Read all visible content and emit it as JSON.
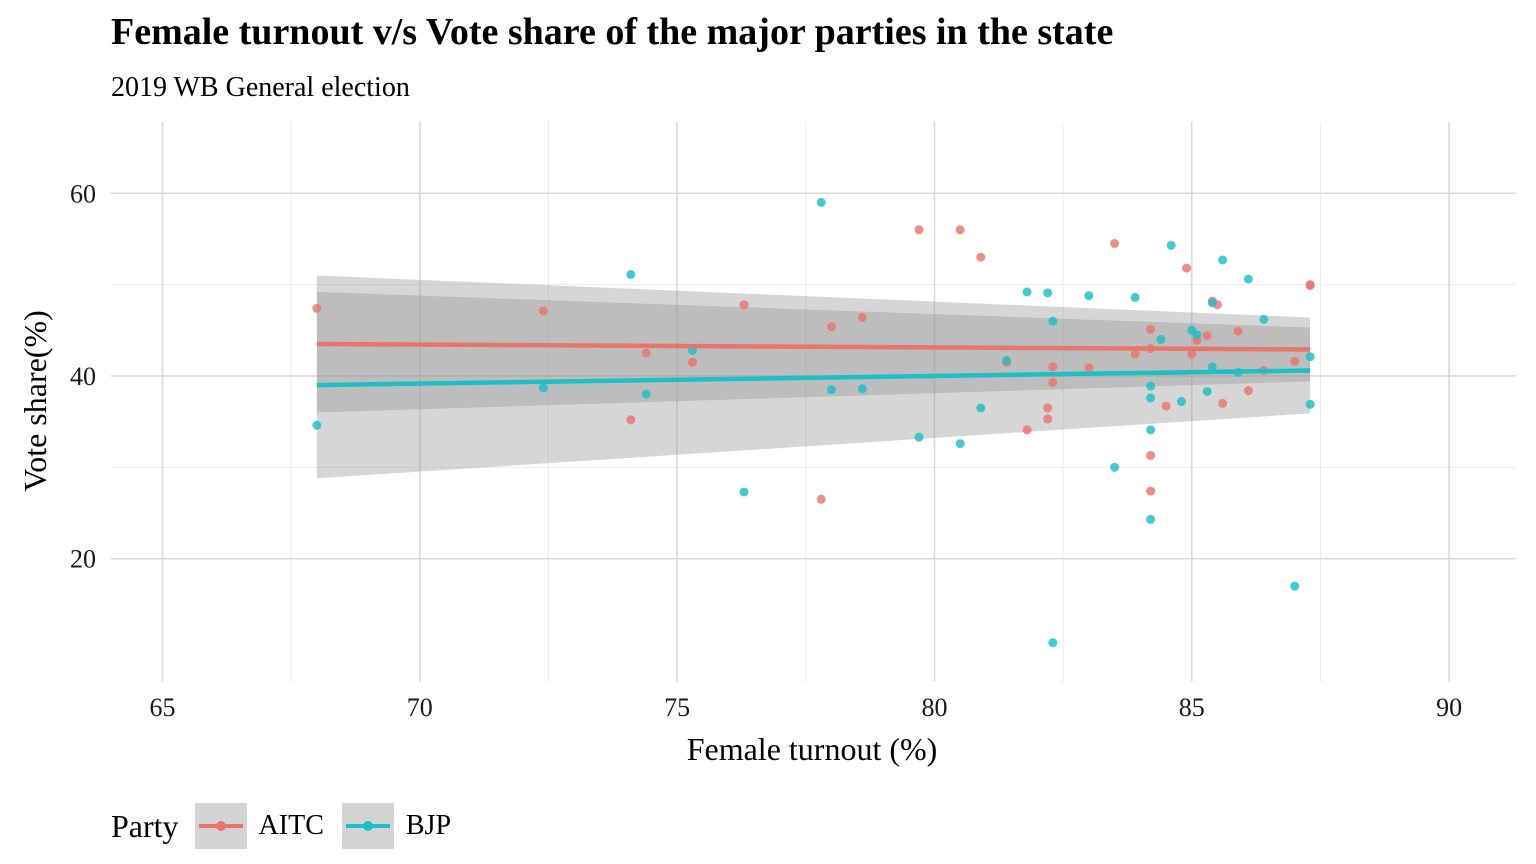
{
  "chart_data": {
    "type": "scatter",
    "title": "Female turnout v/s Vote share of the major parties in the state",
    "subtitle": "2019 WB General election",
    "xlabel": "Female turnout (%)",
    "ylabel": "Vote share(%)",
    "xlim": [
      64,
      91.3
    ],
    "ylim": [
      6.5,
      67.8
    ],
    "xticks": [
      65,
      70,
      75,
      80,
      85,
      90
    ],
    "yticks": [
      20,
      40,
      60
    ],
    "grid": true,
    "legend_title": "Party",
    "legend_position": "bottom-left",
    "series": [
      {
        "name": "AITC",
        "color": "#e8756c",
        "points": [
          [
            68.0,
            47.4
          ],
          [
            72.4,
            47.1
          ],
          [
            74.1,
            35.2
          ],
          [
            74.4,
            42.5
          ],
          [
            75.3,
            41.5
          ],
          [
            76.3,
            47.8
          ],
          [
            77.8,
            26.5
          ],
          [
            78.0,
            45.4
          ],
          [
            78.6,
            46.4
          ],
          [
            79.7,
            56.0
          ],
          [
            80.5,
            56.0
          ],
          [
            80.9,
            53.0
          ],
          [
            81.4,
            41.5
          ],
          [
            81.8,
            34.1
          ],
          [
            82.2,
            36.5
          ],
          [
            82.2,
            35.3
          ],
          [
            82.3,
            41.0
          ],
          [
            82.3,
            39.3
          ],
          [
            83.0,
            40.9
          ],
          [
            83.5,
            54.5
          ],
          [
            83.9,
            42.4
          ],
          [
            84.2,
            45.1
          ],
          [
            84.2,
            43.0
          ],
          [
            84.2,
            31.3
          ],
          [
            84.2,
            27.4
          ],
          [
            84.5,
            36.7
          ],
          [
            84.9,
            51.8
          ],
          [
            85.0,
            42.4
          ],
          [
            85.1,
            43.9
          ],
          [
            85.3,
            44.4
          ],
          [
            85.4,
            48.2
          ],
          [
            85.5,
            47.8
          ],
          [
            85.6,
            37.0
          ],
          [
            85.9,
            44.9
          ],
          [
            86.1,
            38.4
          ],
          [
            86.4,
            40.6
          ],
          [
            87.0,
            41.6
          ],
          [
            87.3,
            50.0
          ],
          [
            87.3,
            49.9
          ]
        ],
        "trend": {
          "x": [
            68.0,
            87.3
          ],
          "y": [
            43.5,
            42.9
          ],
          "ci_lower": [
            36.0,
            39.4
          ],
          "ci_upper": [
            51.0,
            46.4
          ]
        }
      },
      {
        "name": "BJP",
        "color": "#1cbfc4",
        "points": [
          [
            68.0,
            34.6
          ],
          [
            72.4,
            38.7
          ],
          [
            74.1,
            51.1
          ],
          [
            74.4,
            38.0
          ],
          [
            75.3,
            42.8
          ],
          [
            76.3,
            27.3
          ],
          [
            77.8,
            59.0
          ],
          [
            78.0,
            38.5
          ],
          [
            78.6,
            38.6
          ],
          [
            79.7,
            33.3
          ],
          [
            80.5,
            32.6
          ],
          [
            80.9,
            36.5
          ],
          [
            81.4,
            41.7
          ],
          [
            81.8,
            49.2
          ],
          [
            82.2,
            49.1
          ],
          [
            82.3,
            46.0
          ],
          [
            82.3,
            10.8
          ],
          [
            83.0,
            48.8
          ],
          [
            83.5,
            30.0
          ],
          [
            83.9,
            48.6
          ],
          [
            84.2,
            38.9
          ],
          [
            84.2,
            37.6
          ],
          [
            84.2,
            34.1
          ],
          [
            84.2,
            24.3
          ],
          [
            84.4,
            44.0
          ],
          [
            84.6,
            54.3
          ],
          [
            84.8,
            37.2
          ],
          [
            85.0,
            45.0
          ],
          [
            85.1,
            44.5
          ],
          [
            85.3,
            38.3
          ],
          [
            85.4,
            48.0
          ],
          [
            85.4,
            41.0
          ],
          [
            85.6,
            52.7
          ],
          [
            85.9,
            40.4
          ],
          [
            86.1,
            50.6
          ],
          [
            86.4,
            46.2
          ],
          [
            87.0,
            17.0
          ],
          [
            87.3,
            36.9
          ],
          [
            87.3,
            42.1
          ]
        ],
        "trend": {
          "x": [
            68.0,
            87.3
          ],
          "y": [
            39.0,
            40.6
          ],
          "ci_lower": [
            28.8,
            35.9
          ],
          "ci_upper": [
            49.2,
            45.3
          ]
        }
      }
    ]
  }
}
